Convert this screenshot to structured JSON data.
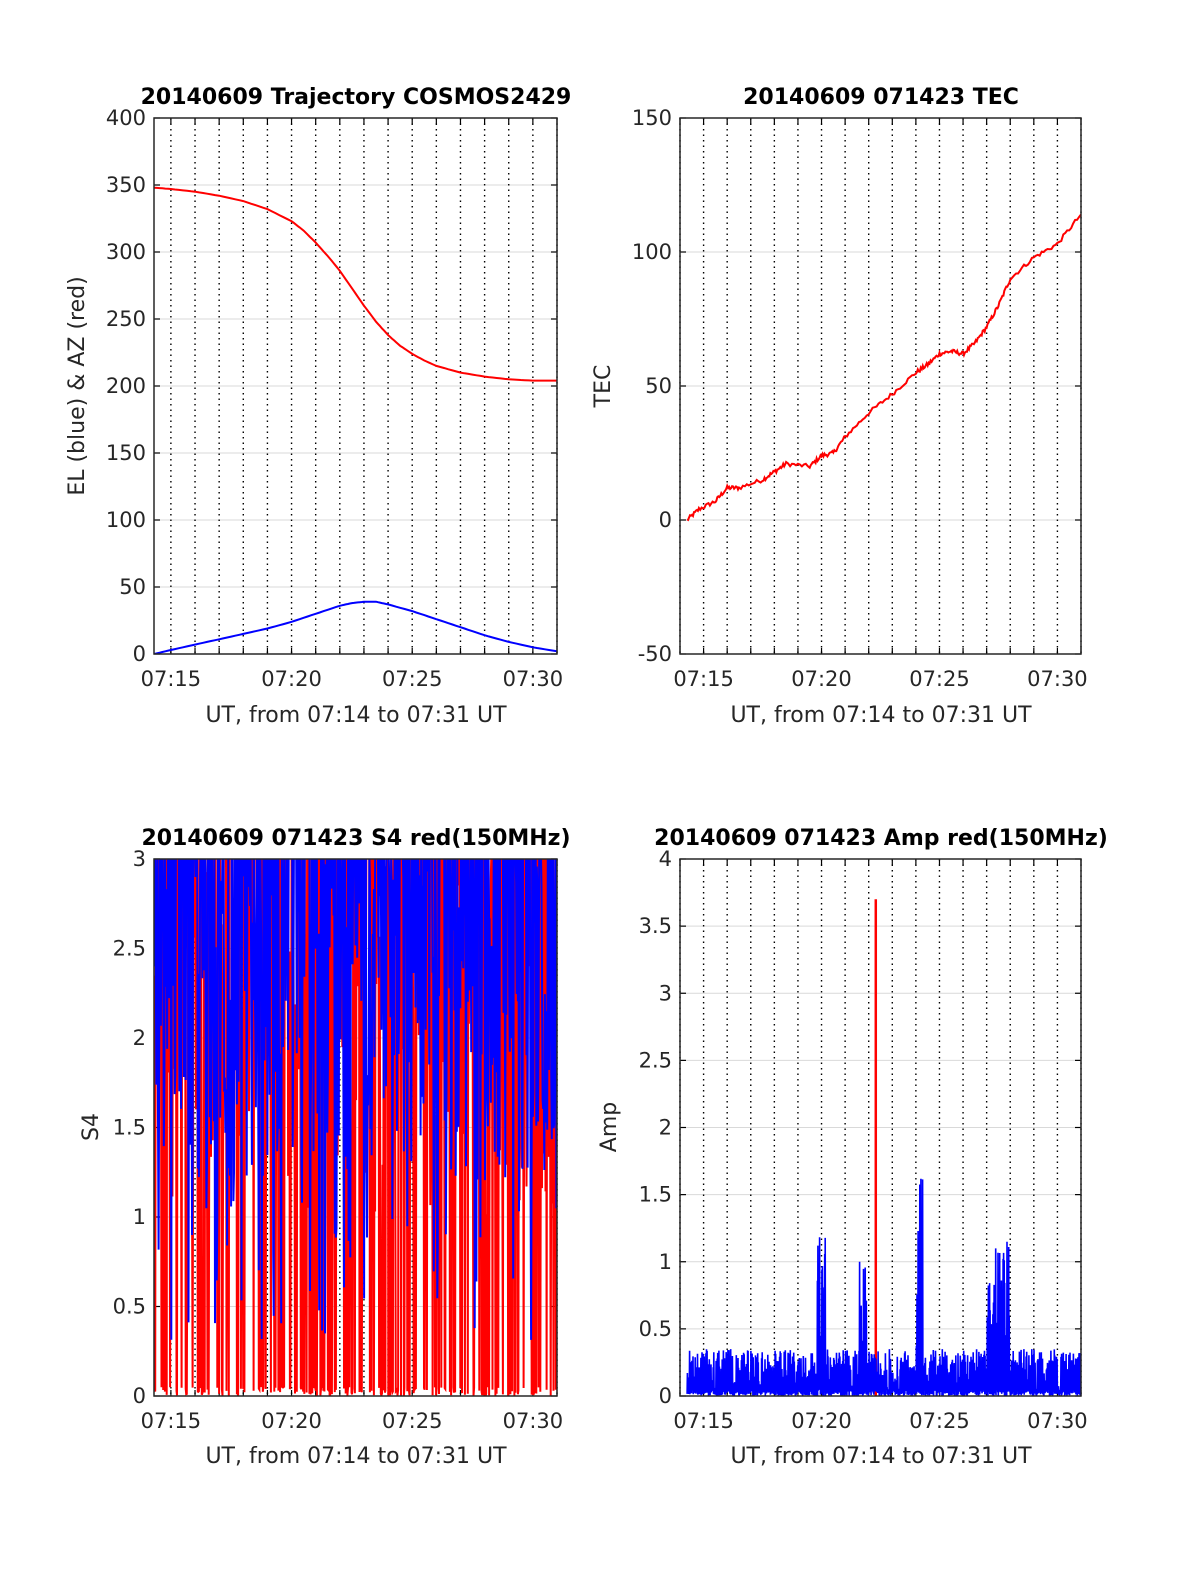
{
  "chart_data": [
    {
      "id": "trajectory",
      "type": "line",
      "title": "20140609 Trajectory COSMOS2429",
      "xlabel": "UT, from 07:14 to 07:31 UT",
      "ylabel": "EL (blue) & AZ (red)",
      "xlim": [
        "07:14.3",
        "07:31.0"
      ],
      "ylim": [
        0,
        400
      ],
      "x_ticks": [
        "07:15",
        "07:20",
        "07:25",
        "07:30"
      ],
      "y_ticks": [
        "0",
        "50",
        "100",
        "150",
        "200",
        "250",
        "300",
        "350",
        "400"
      ],
      "grid": true,
      "series": [
        {
          "color": "#ff0000",
          "x_min": [
            14.3,
            15,
            16,
            17,
            18,
            19,
            20,
            20.5,
            21,
            21.5,
            22,
            22.5,
            23,
            23.5,
            24,
            24.5,
            25,
            25.5,
            26,
            27,
            28,
            29,
            30,
            31
          ],
          "y": [
            348,
            347,
            345,
            342,
            338,
            332,
            323,
            316,
            307,
            297,
            286,
            273,
            260,
            248,
            238,
            230,
            224,
            219,
            215,
            210,
            207,
            205,
            204,
            204
          ]
        },
        {
          "color": "#0000ff",
          "x_min": [
            14.3,
            15,
            16,
            17,
            18,
            19,
            20,
            21,
            22,
            22.5,
            23,
            23.5,
            24,
            25,
            26,
            27,
            28,
            29,
            30,
            31
          ],
          "y": [
            0,
            3,
            7,
            11,
            15,
            19,
            24,
            30,
            36,
            38,
            39,
            39,
            37,
            32,
            26,
            20,
            14,
            9,
            5,
            2
          ]
        }
      ]
    },
    {
      "id": "tec",
      "type": "line",
      "title": "20140609 071423 TEC",
      "xlabel": "UT, from 07:14 to 07:31 UT",
      "ylabel": "TEC",
      "xlim": [
        "07:14.0",
        "07:31.0"
      ],
      "ylim": [
        -50,
        150
      ],
      "x_ticks": [
        "07:15",
        "07:20",
        "07:25",
        "07:30"
      ],
      "y_ticks": [
        "-50",
        "0",
        "50",
        "100",
        "150"
      ],
      "grid": true,
      "series": [
        {
          "color": "#ff0000",
          "x_min": [
            14.3,
            14.8,
            15.5,
            16,
            16.5,
            17.5,
            18,
            18.5,
            19.5,
            20,
            20.5,
            21,
            22,
            23,
            24,
            24.5,
            25,
            25.5,
            26,
            26.5,
            27,
            27.5,
            28,
            29,
            30,
            31
          ],
          "y": [
            0,
            4,
            7,
            12,
            12,
            15,
            18,
            21,
            20,
            24,
            25,
            31,
            40,
            47,
            55,
            58,
            62,
            63,
            62,
            66,
            72,
            80,
            90,
            98,
            103,
            114
          ]
        }
      ]
    },
    {
      "id": "s4",
      "type": "line",
      "title": "20140609 071423 S4 red(150MHz)",
      "xlabel": "UT, from 07:14 to 07:31 UT",
      "ylabel": "S4",
      "xlim": [
        "07:14.3",
        "07:31.0"
      ],
      "ylim": [
        0,
        3
      ],
      "x_ticks": [
        "07:15",
        "07:20",
        "07:25",
        "07:30"
      ],
      "y_ticks": [
        "0",
        "0.5",
        "1",
        "1.5",
        "2",
        "2.5",
        "3"
      ],
      "grid": true,
      "series": [
        {
          "color": "#ff0000",
          "x_min": [
            14.3,
            31
          ],
          "y_range": [
            0,
            3
          ]
        },
        {
          "color": "#0000ff",
          "x_min": [
            14.3,
            31
          ],
          "y_range": [
            0.2,
            3
          ]
        }
      ]
    },
    {
      "id": "amp",
      "type": "line",
      "title": "20140609 071423 Amp red(150MHz)",
      "xlabel": "UT, from 07:14 to 07:31 UT",
      "ylabel": "Amp",
      "xlim": [
        "07:14.0",
        "07:31.0"
      ],
      "ylim": [
        0,
        4
      ],
      "x_ticks": [
        "07:15",
        "07:20",
        "07:25",
        "07:30"
      ],
      "y_ticks": [
        "0",
        "0.5",
        "1",
        "1.5",
        "2",
        "2.5",
        "3",
        "3.5",
        "4"
      ],
      "grid": true,
      "series": [
        {
          "color": "#ff0000",
          "spike": {
            "x_min": 22.3,
            "y": 3.7
          }
        },
        {
          "color": "#0000ff",
          "noise_ceiling": 0.35,
          "bursts": [
            {
              "x_min": [
                19.8,
                20.2
              ],
              "peak": 1.28
            },
            {
              "x_min": [
                21.6,
                21.9
              ],
              "peak": 1.0
            },
            {
              "x_min": [
                24.0,
                24.3
              ],
              "peak": 1.8
            },
            {
              "x_min": [
                27.0,
                28.0
              ],
              "peak": 1.15
            }
          ]
        }
      ]
    }
  ],
  "colors": {
    "red": "#ff0000",
    "blue": "#0000ff",
    "grid": "#000000"
  }
}
